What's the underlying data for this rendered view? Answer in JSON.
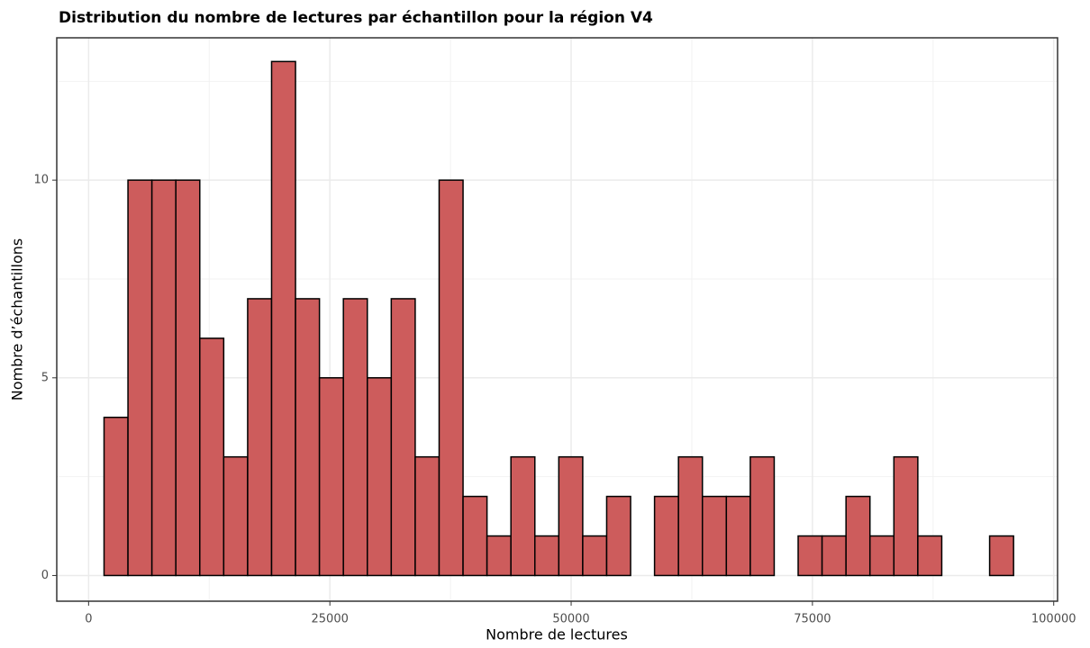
{
  "chart_data": {
    "type": "histogram",
    "title": "Distribution du nombre de lectures par échantillon pour la région V4",
    "x_label": "Nombre de lectures",
    "y_label": "Nombre d’échantillons",
    "bins": [
      1600,
      4080,
      6560,
      9040,
      11520,
      14000,
      16480,
      18960,
      21440,
      23920,
      26400,
      28880,
      31360,
      33840,
      36320,
      38800,
      41280,
      43760,
      46240,
      48720,
      51200,
      53680,
      56160,
      58640,
      61120,
      63600,
      66080,
      68560,
      71040,
      73520,
      76000,
      78480,
      80960,
      83440,
      85920,
      88400,
      90880,
      93360,
      95840
    ],
    "values": [
      4,
      10,
      10,
      10,
      6,
      3,
      7,
      13,
      7,
      5,
      7,
      5,
      7,
      3,
      10,
      2,
      1,
      3,
      1,
      3,
      1,
      2,
      0,
      2,
      3,
      2,
      2,
      3,
      0,
      1,
      1,
      2,
      1,
      3,
      1,
      0,
      0,
      1
    ],
    "color": "#cd5c5c",
    "edge_color": "#000000",
    "xlim": [
      -3300,
      100400
    ],
    "ylim": [
      -0.65,
      13.6
    ],
    "xticks": [
      0,
      25000,
      50000,
      75000,
      100000
    ],
    "yticks": [
      0,
      5,
      10
    ],
    "grid": true,
    "minor_grid": true
  }
}
